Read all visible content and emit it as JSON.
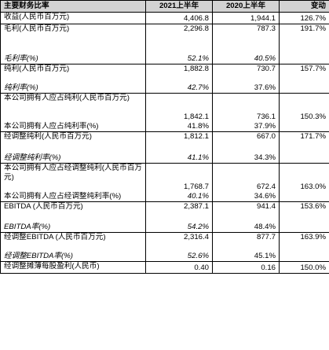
{
  "header": {
    "label": "主要财务比率",
    "col1": "2021上半年",
    "col2": "2020上半年",
    "col3": "变动"
  },
  "rows": [
    {
      "top": "收益(人民币百万元)",
      "bottom": "",
      "v1": "4,406.8",
      "v2": "1,944.1",
      "v3": "126.7%"
    },
    {
      "top": "毛利(人民币百万元)",
      "bottom": "毛利率(%)",
      "v1": "2,296.8",
      "v2": "787.3",
      "v3": "191.7%",
      "b1": "52.1%",
      "b2": "40.5%",
      "b3": ""
    },
    {
      "top": "纯利(人民币百万元)",
      "bottom": "纯利率(%)",
      "v1": "1,882.8",
      "v2": "730.7",
      "v3": "157.7%",
      "b1": "42.7%",
      "b2": "37.6%",
      "b3": ""
    },
    {
      "top": "本公司拥有人应占纯利(人民币百万元)",
      "bottom": "本公司拥有人应占纯利率(%)",
      "v1": "1,842.1",
      "v2": "736.1",
      "v3": "150.3%",
      "b1": "41.8%",
      "b2": "37.9%",
      "b3": ""
    },
    {
      "top": "经调整纯利(人民币百万元)",
      "bottom": "经调整纯利率(%)",
      "v1": "1,812.1",
      "v2": "667.0",
      "v3": "171.7%",
      "b1": "41.1%",
      "b2": "34.3%",
      "b3": ""
    },
    {
      "top": "本公司拥有人应占经调整纯利(人民币百万元)",
      "bottom": "本公司拥有人应占经调整纯利率(%)",
      "v1": "1,768.7",
      "v2": "672.4",
      "v3": "163.0%",
      "b1": "40.1%",
      "b2": "34.6%",
      "b3": ""
    },
    {
      "top": "EBITDA (人民币百万元)",
      "bottom": "EBITDA率(%)",
      "v1": "2,387.1",
      "v2": "941.4",
      "v3": "153.6%",
      "b1": "54.2%",
      "b2": "48.4%",
      "b3": ""
    },
    {
      "top": "经调整EBITDA (人民币百万元)",
      "bottom": "经调整EBITDA率(%)",
      "v1": "2,316.4",
      "v2": "877.7",
      "v3": "163.9%",
      "b1": "52.6%",
      "b2": "45.1%",
      "b3": ""
    },
    {
      "top": "经调整摊薄每股盈利(人民币)",
      "bottom": "",
      "v1": "0.40",
      "v2": "0.16",
      "v3": "150.0%"
    }
  ]
}
